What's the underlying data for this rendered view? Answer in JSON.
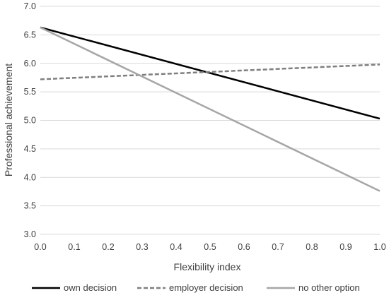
{
  "chart_data": {
    "type": "line",
    "title": "",
    "xlabel": "Flexibility index",
    "ylabel": "Professional achievement",
    "xlim": [
      0.0,
      1.0
    ],
    "ylim": [
      3.0,
      7.0
    ],
    "x_ticks": [
      0.0,
      0.1,
      0.2,
      0.3,
      0.4,
      0.5,
      0.6,
      0.7,
      0.8,
      0.9,
      1.0
    ],
    "y_ticks": [
      3.0,
      3.5,
      4.0,
      4.5,
      5.0,
      5.5,
      6.0,
      6.5,
      7.0
    ],
    "x_tick_labels": [
      "0.0",
      "0.1",
      "0.2",
      "0.3",
      "0.4",
      "0.5",
      "0.6",
      "0.7",
      "0.8",
      "0.9",
      "1.0"
    ],
    "y_tick_labels": [
      "3.0",
      "3.5",
      "4.0",
      "4.5",
      "5.0",
      "5.5",
      "6.0",
      "6.5",
      "7.0"
    ],
    "grid": "horizontal",
    "legend_position": "bottom",
    "series": [
      {
        "name": "own decision",
        "x": [
          0.0,
          1.0
        ],
        "y": [
          6.63,
          5.03
        ],
        "color": "#000000",
        "dash": "solid"
      },
      {
        "name": "employer decision",
        "x": [
          0.0,
          1.0
        ],
        "y": [
          5.72,
          5.98
        ],
        "color": "#7f7f7f",
        "dash": "dashed"
      },
      {
        "name": "no other option",
        "x": [
          0.0,
          1.0
        ],
        "y": [
          6.63,
          3.76
        ],
        "color": "#a6a6a6",
        "dash": "solid"
      }
    ]
  }
}
